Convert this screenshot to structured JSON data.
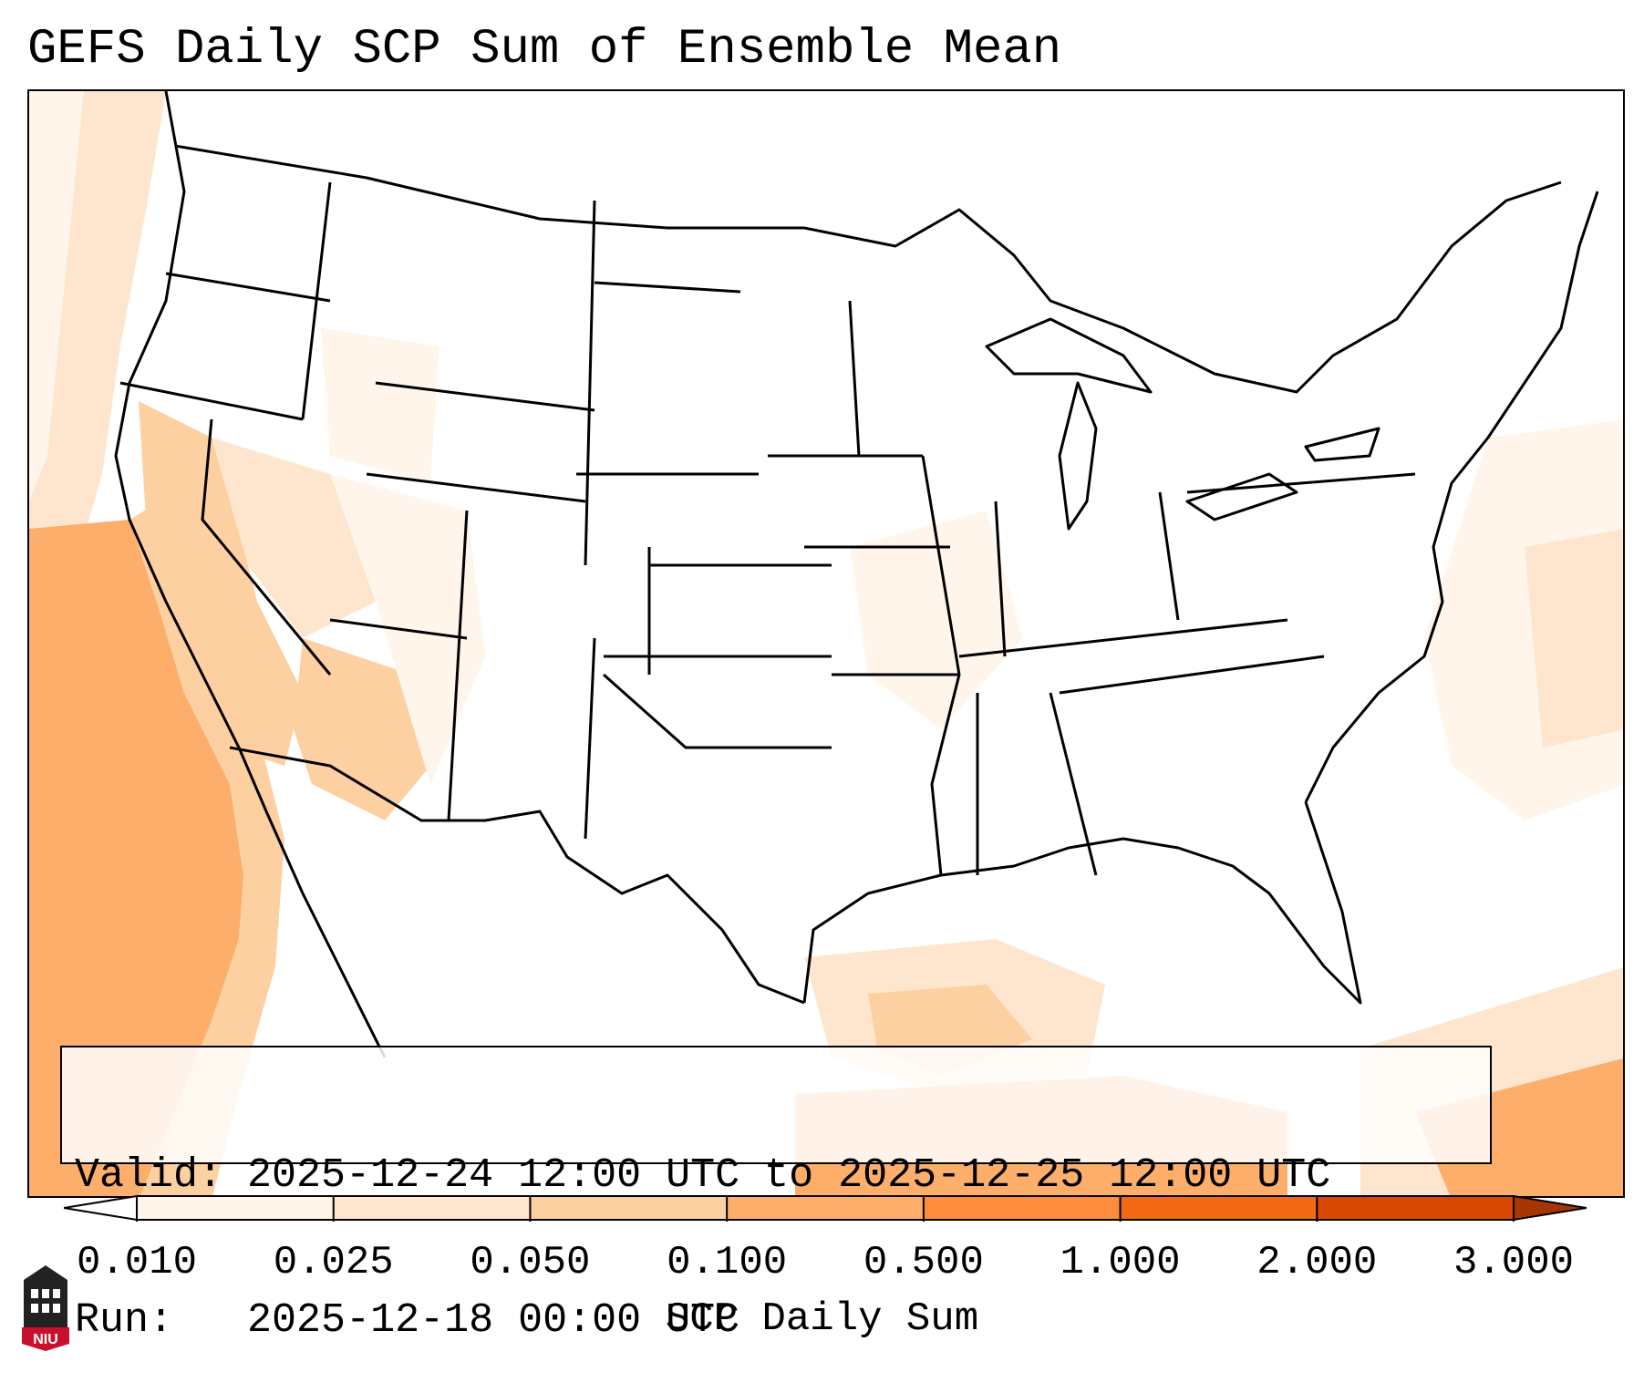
{
  "title": "GEFS Daily SCP Sum of Ensemble Mean",
  "info": {
    "valid_label": "Valid:",
    "valid_value": "2025-12-24 12:00 UTC to 2025-12-25 12:00 UTC",
    "run_label": "Run:",
    "run_value": "2025-12-18 00:00 UTC"
  },
  "colorbar": {
    "label": "SCP Daily Sum",
    "ticks": [
      "0.010",
      "0.025",
      "0.050",
      "0.100",
      "0.500",
      "1.000",
      "2.000",
      "3.000"
    ],
    "colors": [
      "#fff5eb",
      "#fee6ce",
      "#fdd0a2",
      "#fdae6b",
      "#fd8d3c",
      "#f16913",
      "#d94801"
    ],
    "under_color": "#ffffff",
    "over_color": "#a63603"
  },
  "map": {
    "region": "Contiguous United States",
    "shaded_regions": [
      {
        "area": "Eastern Pacific off California and Baja",
        "level": "0.100"
      },
      {
        "area": "Pacific Northwest coast",
        "level": "0.025"
      },
      {
        "area": "California Central Valley",
        "level": "0.050"
      },
      {
        "area": "Arizona and southern Nevada",
        "level": "0.050"
      },
      {
        "area": "Great Basin",
        "level": "0.025"
      },
      {
        "area": "Western Gulf of Mexico",
        "level": "0.050"
      },
      {
        "area": "Southern Gulf of Mexico",
        "level": "0.100"
      },
      {
        "area": "Western Atlantic",
        "level": "0.025"
      },
      {
        "area": "Caribbean",
        "level": "0.100"
      },
      {
        "area": "Mid-Mississippi Valley",
        "level": "0.010"
      }
    ]
  },
  "logo": {
    "text": "NIU"
  }
}
